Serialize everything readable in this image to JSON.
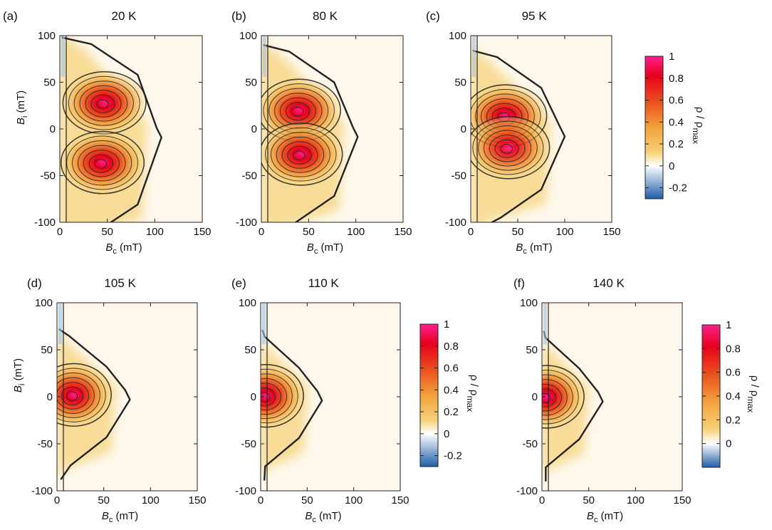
{
  "figure": {
    "panels": [
      {
        "letter": "(a)",
        "temperature": "20 K"
      },
      {
        "letter": "(b)",
        "temperature": "80 K"
      },
      {
        "letter": "(c)",
        "temperature": "95 K"
      },
      {
        "letter": "(d)",
        "temperature": "105 K"
      },
      {
        "letter": "(e)",
        "temperature": "110 K"
      },
      {
        "letter": "(f)",
        "temperature": "140 K"
      }
    ],
    "x_axis_label": {
      "symbol": "B",
      "subscript": "c",
      "unit": " (mT)"
    },
    "y_axis_label": {
      "symbol": "B",
      "subscript": "i",
      "unit": " (mT)"
    },
    "colorbar_label": {
      "symbol": "ρ / ρ",
      "subscript": "max"
    },
    "colorbars": [
      {
        "id": "top",
        "ticks": [
          "1",
          "0.8",
          "0.6",
          "0.4",
          "0.2",
          "0",
          "-0.2"
        ]
      },
      {
        "id": "middle",
        "ticks": [
          "1",
          "0.8",
          "0.6",
          "0.4",
          "0.2",
          "0",
          "-0.2"
        ]
      },
      {
        "id": "bottom",
        "ticks": [
          "1",
          "0.8",
          "0.6",
          "0.4",
          "0.2",
          "0"
        ]
      }
    ],
    "colors": {
      "colormap": [
        "#1f5ea8",
        "#ffffff",
        "#f6d27a",
        "#f2a23a",
        "#ea4a1c",
        "#e8001e",
        "#ff1f8c"
      ],
      "contour": "#222222",
      "background_tint": "#fdf3dc"
    }
  },
  "chart_data": [
    {
      "type": "heatmap",
      "panel": "(a)",
      "title": "20 K",
      "xlabel": "B_c (mT)",
      "ylabel": "B_i (mT)",
      "xlim": [
        0,
        150
      ],
      "ylim": [
        -100,
        100
      ],
      "x_ticks": [
        0,
        50,
        100,
        150
      ],
      "y_ticks": [
        -100,
        -50,
        0,
        50,
        100
      ],
      "colorbar_range": [
        -0.3,
        1
      ],
      "peaks": [
        {
          "Bc": 47,
          "Bi": 28,
          "rho": 1.0
        },
        {
          "Bc": 45,
          "Bi": -36,
          "rho": 1.0
        }
      ]
    },
    {
      "type": "heatmap",
      "panel": "(b)",
      "title": "80 K",
      "xlabel": "B_c (mT)",
      "ylabel": "B_i (mT)",
      "xlim": [
        0,
        150
      ],
      "ylim": [
        -100,
        100
      ],
      "x_ticks": [
        0,
        50,
        100,
        150
      ],
      "y_ticks": [
        -100,
        -50,
        0,
        50,
        100
      ],
      "colorbar_range": [
        -0.3,
        1
      ],
      "peaks": [
        {
          "Bc": 40,
          "Bi": 20,
          "rho": 1.0
        },
        {
          "Bc": 42,
          "Bi": -27,
          "rho": 1.0
        }
      ]
    },
    {
      "type": "heatmap",
      "panel": "(c)",
      "title": "95 K",
      "xlabel": "B_c (mT)",
      "ylabel": "B_i (mT)",
      "xlim": [
        0,
        150
      ],
      "ylim": [
        -100,
        100
      ],
      "x_ticks": [
        0,
        50,
        100,
        150
      ],
      "y_ticks": [
        -100,
        -50,
        0,
        50,
        100
      ],
      "colorbar_range": [
        -0.3,
        1
      ],
      "peaks": [
        {
          "Bc": 37,
          "Bi": 14,
          "rho": 1.0
        },
        {
          "Bc": 40,
          "Bi": -20,
          "rho": 0.9
        }
      ]
    },
    {
      "type": "heatmap",
      "panel": "(d)",
      "title": "105 K",
      "xlabel": "B_c (mT)",
      "ylabel": "B_i (mT)",
      "xlim": [
        0,
        150
      ],
      "ylim": [
        -100,
        100
      ],
      "x_ticks": [
        0,
        50,
        100,
        150
      ],
      "y_ticks": [
        -100,
        -50,
        0,
        50,
        100
      ],
      "colorbar_range": [
        -0.3,
        1
      ],
      "peaks": [
        {
          "Bc": 18,
          "Bi": 2,
          "rho": 1.0
        }
      ]
    },
    {
      "type": "heatmap",
      "panel": "(e)",
      "title": "110 K",
      "xlabel": "B_c (mT)",
      "ylabel": "B_i (mT)",
      "xlim": [
        0,
        150
      ],
      "ylim": [
        -100,
        100
      ],
      "x_ticks": [
        0,
        50,
        100,
        150
      ],
      "y_ticks": [
        -100,
        -50,
        0,
        50,
        100
      ],
      "colorbar_range": [
        -0.3,
        1
      ],
      "peaks": [
        {
          "Bc": 6,
          "Bi": 1,
          "rho": 1.0
        }
      ]
    },
    {
      "type": "heatmap",
      "panel": "(f)",
      "title": "140 K",
      "xlabel": "B_c (mT)",
      "ylabel": "B_i (mT)",
      "xlim": [
        0,
        150
      ],
      "ylim": [
        -100,
        100
      ],
      "x_ticks": [
        0,
        50,
        100,
        150
      ],
      "y_ticks": [
        -100,
        -50,
        0,
        50,
        100
      ],
      "colorbar_range": [
        -0.2,
        1
      ],
      "peaks": [
        {
          "Bc": 5,
          "Bi": 0,
          "rho": 1.0
        }
      ]
    }
  ]
}
